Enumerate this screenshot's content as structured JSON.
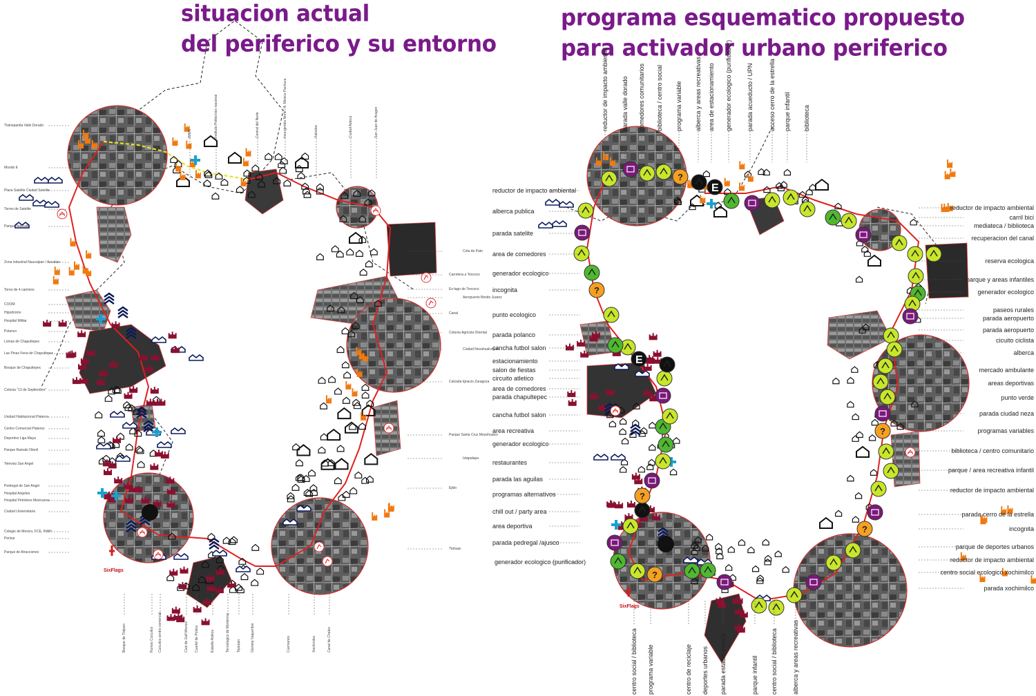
{
  "left_panel": {
    "title_line1": "situacion actual",
    "title_line2": "del periferico y su entorno",
    "left_labels": [
      "Tlalnepantla Valle Dorado",
      "Mundo E",
      "Plaza Satelite Ciudad Satelite",
      "Torres de Satelite",
      "Parque Naucalli",
      "Zona industrial Naucalpan / Azcatlan",
      "Toreo de 4 caminos",
      "COOM",
      "Hipodromo",
      "Hospital Militar",
      "Polanco",
      "Lomas de Chapultepec",
      "Las Pinas Feria de Chapultepec",
      "Bosque de Chapultepec",
      "Colonia \"13 de Septiembre\"",
      "Unidad Habitacional Plateros",
      "Centro Comercial Plateros",
      "Deportivo Liga Maya",
      "Parque Ramalo Otonil",
      "Televisa San Angel",
      "Pedregal de San Angel",
      "Hospital Angeles",
      "Hospital Petroleos Mexicanos",
      "Ciudad Universitaria",
      "Colegio de Mexico, FCE, INAH",
      "Perisur",
      "Parque de Atracciones"
    ],
    "top_labels": [
      "IMMS",
      "Instituto Politecnico nacional",
      "Central del Norte",
      "Insurgentes Norte / A. Mexico Pachuca",
      "Xalostoc",
      "Ciudad Azteca",
      "San Juan de Aragon"
    ],
    "right_labels": [
      "Cola de Pato",
      "Carretera a Texcoco",
      "Ex-lago de Texcoco",
      "Aeropuerto Benito Juarez",
      "Canal",
      "Colonia Agricola Oriental",
      "Ciudad Nezahualcoyotl",
      "Calzada Ignacio Zaragoza",
      "Parque Santa Cruz Meyehualco",
      "Iztapalapa",
      "Ejido",
      "Tlahuac"
    ],
    "bottom_labels": [
      "Bosque de Tlalpan",
      "Ruinas Cuicuilco",
      "Cuicuilco centro comercial",
      "Club de Golf Mexico",
      "Cuartel de Policia",
      "Estadio Azteca",
      "Tecnologico de Monterrey",
      "Tepepan",
      "Glorieta Vaqueritos",
      "Cuemanco",
      "Xochimilco",
      "Canal de Chalco"
    ]
  },
  "right_panel": {
    "title_line1": "programa esquematico propuesto",
    "title_line2": "para activador urbano  periferico",
    "top_labels": [
      "reductor de impacto ambiental",
      "parada valle dorado",
      "comedores comunitarios",
      "biblioteca / centro social",
      "programa variable",
      "alberca y areas recreativas",
      "area de estacionamiento",
      "generador ecologico (purificador)",
      "parada acueducto / UPN",
      "acceso cerro de la estrella",
      "parque infantil",
      "biblioteca"
    ],
    "left_labels": [
      "reductor de impacto ambiental",
      "alberca publica",
      "parada satelite",
      "area de comedores",
      "generador ecologico",
      "incognita",
      "punto ecologico",
      "parada polanco",
      "cancha futbol salon",
      "estacionamiento",
      "salon de fiestas",
      "circuito atletico",
      "area de comedores",
      "parada chapultepec",
      "cancha futbol salon",
      "area recreativa",
      "generador ecologico",
      "restaurantes",
      "parada las aguilas",
      "programas alternativos",
      "chill out / party area",
      "area deportiva",
      "parada pedregal /ajusco",
      "generador ecologico (purificador)"
    ],
    "right_labels": [
      "reductor de impacto ambiental",
      "carril bici",
      "mediateca / biblioteca",
      "recuperacion del canal",
      "reserva ecologica",
      "parque y areas infantiles",
      "generador ecologico",
      "paseos rurales",
      "parada aeropuerto",
      "parada aeropuerto",
      "cicuito ciclista",
      "alberca",
      "mercado ambulante",
      "areas deportivas",
      "punto verde",
      "parada ciudad neza",
      "programas variables",
      "biblioteca / centro comunitario",
      "parque / area recreativa infantil",
      "reductor de impacto ambiental",
      "parada cerro de la estrella",
      "incognita",
      "parque de deportes urbanos",
      "reductor de impacto ambiental",
      "centro social ecologico xochimilco",
      "parada xochimilco"
    ],
    "bottom_labels": [
      "centro social / biblioteca",
      "programa variable",
      "centro de reciclaje",
      "deportes urbanos",
      "parada estadio azteca",
      "parque infantil",
      "centro social / biblioteca",
      "alberca y areas recreativas"
    ]
  },
  "marks": {
    "six_flags": "SixFlags",
    "letter_e": "E",
    "question": "?"
  },
  "colors": {
    "title": "#7a1a8a",
    "route": "#e02020",
    "icon_lime": "#c8e62a",
    "icon_green": "#4fb830",
    "icon_purple": "#7a1a7a",
    "icon_orange": "#f5a020",
    "factory": "#f07a10",
    "castle": "#8a1030",
    "house": "#0b1a5a",
    "aerial": "#6a6a6a"
  }
}
